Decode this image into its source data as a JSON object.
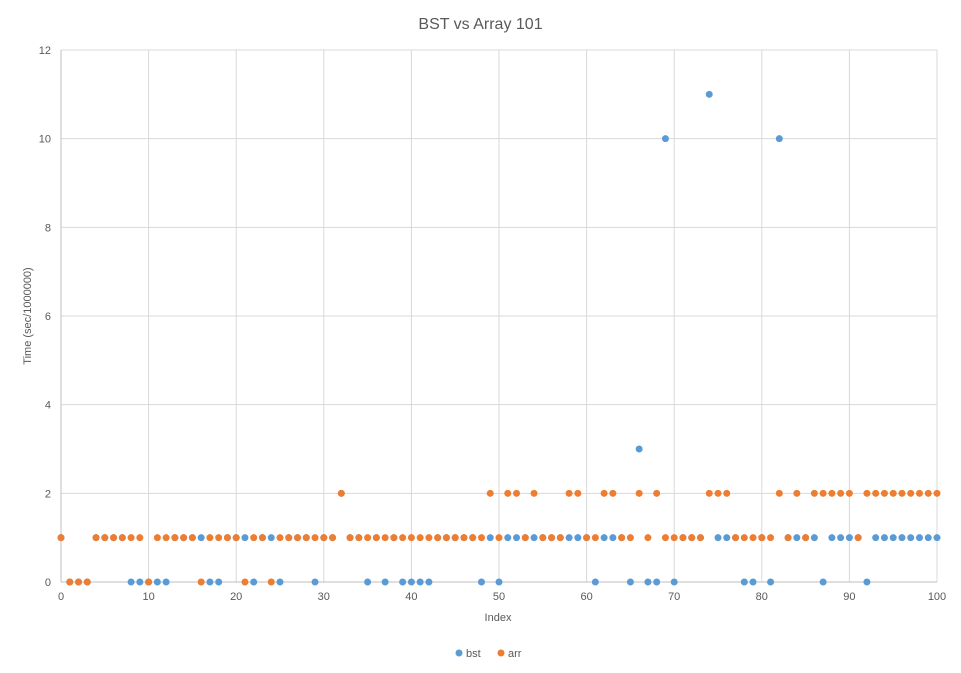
{
  "chart_data": {
    "type": "scatter",
    "title": "BST vs Array 101",
    "xlabel": "Index",
    "ylabel": "Time (sec/1000000)",
    "xlim": [
      0,
      100
    ],
    "ylim": [
      0,
      12
    ],
    "x_ticks": [
      0,
      10,
      20,
      30,
      40,
      50,
      60,
      70,
      80,
      90,
      100
    ],
    "y_ticks": [
      0,
      2,
      4,
      6,
      8,
      10,
      12
    ],
    "grid": true,
    "legend_position": "bottom",
    "series": [
      {
        "name": "bst",
        "color": "#5B9BD5",
        "x": [
          0,
          1,
          2,
          3,
          4,
          5,
          6,
          7,
          8,
          9,
          10,
          11,
          12,
          13,
          14,
          15,
          16,
          17,
          18,
          19,
          20,
          21,
          22,
          23,
          24,
          25,
          26,
          27,
          28,
          29,
          30,
          31,
          32,
          33,
          34,
          35,
          36,
          37,
          38,
          39,
          40,
          41,
          42,
          43,
          44,
          45,
          46,
          47,
          48,
          49,
          50,
          51,
          52,
          53,
          54,
          55,
          56,
          57,
          58,
          59,
          60,
          61,
          62,
          63,
          64,
          65,
          66,
          67,
          68,
          69,
          70,
          71,
          72,
          73,
          74,
          75,
          76,
          77,
          78,
          79,
          80,
          81,
          82,
          83,
          84,
          85,
          86,
          87,
          88,
          89,
          90,
          91,
          92,
          93,
          94,
          95,
          96,
          97,
          98,
          99,
          100
        ],
        "y": [
          1,
          0,
          0,
          0,
          1,
          1,
          1,
          1,
          0,
          0,
          0,
          0,
          0,
          1,
          1,
          1,
          1,
          0,
          0,
          1,
          1,
          1,
          0,
          1,
          1,
          0,
          1,
          1,
          1,
          0,
          1,
          1,
          2,
          1,
          1,
          0,
          1,
          0,
          1,
          0,
          0,
          0,
          0,
          1,
          1,
          1,
          1,
          1,
          0,
          1,
          0,
          1,
          1,
          1,
          1,
          1,
          1,
          1,
          1,
          1,
          1,
          0,
          1,
          1,
          1,
          0,
          3,
          0,
          0,
          10,
          0,
          1,
          1,
          1,
          11,
          1,
          1,
          1,
          0,
          0,
          1,
          0,
          10,
          1,
          1,
          1,
          1,
          0,
          1,
          1,
          1,
          1,
          0,
          1,
          1,
          1,
          1,
          1,
          1,
          1,
          1
        ]
      },
      {
        "name": "arr",
        "color": "#ED7D31",
        "x": [
          0,
          1,
          2,
          3,
          4,
          5,
          6,
          7,
          8,
          9,
          10,
          11,
          12,
          13,
          14,
          15,
          16,
          17,
          18,
          19,
          20,
          21,
          22,
          23,
          24,
          25,
          26,
          27,
          28,
          29,
          30,
          31,
          32,
          33,
          34,
          35,
          36,
          37,
          38,
          39,
          40,
          41,
          42,
          43,
          44,
          45,
          46,
          47,
          48,
          49,
          50,
          51,
          52,
          53,
          54,
          55,
          56,
          57,
          58,
          59,
          60,
          61,
          62,
          63,
          64,
          65,
          66,
          67,
          68,
          69,
          70,
          71,
          72,
          73,
          74,
          75,
          76,
          77,
          78,
          79,
          80,
          81,
          82,
          83,
          84,
          85,
          86,
          87,
          88,
          89,
          90,
          91,
          92,
          93,
          94,
          95,
          96,
          97,
          98,
          99,
          100
        ],
        "y": [
          1,
          0,
          0,
          0,
          1,
          1,
          1,
          1,
          1,
          1,
          0,
          1,
          1,
          1,
          1,
          1,
          0,
          1,
          1,
          1,
          1,
          0,
          1,
          1,
          0,
          1,
          1,
          1,
          1,
          1,
          1,
          1,
          2,
          1,
          1,
          1,
          1,
          1,
          1,
          1,
          1,
          1,
          1,
          1,
          1,
          1,
          1,
          1,
          1,
          2,
          1,
          2,
          2,
          1,
          2,
          1,
          1,
          1,
          2,
          2,
          1,
          1,
          2,
          2,
          1,
          1,
          2,
          1,
          2,
          1,
          1,
          1,
          1,
          1,
          2,
          2,
          2,
          1,
          1,
          1,
          1,
          1,
          2,
          1,
          2,
          1,
          2,
          2,
          2,
          2,
          2,
          1,
          2,
          2,
          2,
          2,
          2,
          2,
          2,
          2,
          2
        ]
      }
    ]
  }
}
